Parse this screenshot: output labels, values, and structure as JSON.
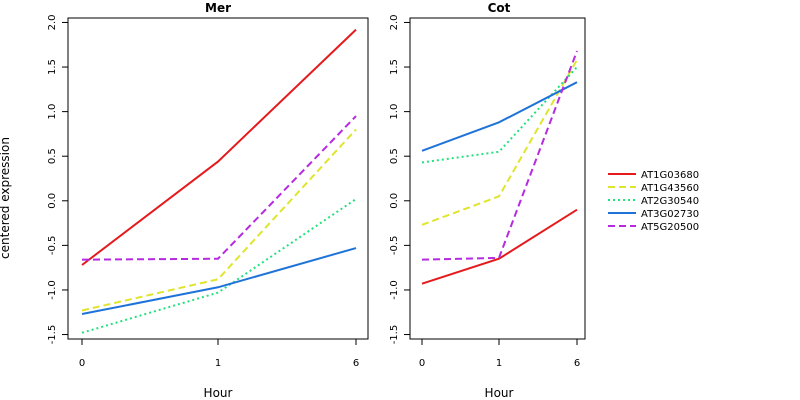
{
  "chart_data": [
    {
      "type": "line",
      "title": "Mer",
      "xlabel": "Hour",
      "ylabel": "centered expression",
      "categories": [
        "0",
        "1",
        "6"
      ],
      "yticks": [
        "-1.5",
        "-1.0",
        "-0.5",
        "0.0",
        "0.5",
        "1.0",
        "1.5",
        "2.0"
      ],
      "ylim": [
        -1.55,
        2.05
      ],
      "series": [
        {
          "name": "AT1G03680",
          "values": [
            -0.72,
            0.44,
            1.92
          ]
        },
        {
          "name": "AT1G43560",
          "values": [
            -1.23,
            -0.88,
            0.8
          ]
        },
        {
          "name": "AT2G30540",
          "values": [
            -1.48,
            -1.03,
            0.02
          ]
        },
        {
          "name": "AT3G02730",
          "values": [
            -1.27,
            -0.97,
            -0.53
          ]
        },
        {
          "name": "AT5G20500",
          "values": [
            -0.66,
            -0.65,
            0.95
          ]
        }
      ]
    },
    {
      "type": "line",
      "title": "Cot",
      "xlabel": "Hour",
      "ylabel": "",
      "categories": [
        "0",
        "1",
        "6"
      ],
      "yticks": [
        "-1.5",
        "-1.0",
        "-0.5",
        "0.0",
        "0.5",
        "1.0",
        "1.5",
        "2.0"
      ],
      "ylim": [
        -1.55,
        2.05
      ],
      "series": [
        {
          "name": "AT1G03680",
          "values": [
            -0.93,
            -0.65,
            -0.1
          ]
        },
        {
          "name": "AT1G43560",
          "values": [
            -0.27,
            0.05,
            1.58
          ]
        },
        {
          "name": "AT2G30540",
          "values": [
            0.43,
            0.55,
            1.5
          ]
        },
        {
          "name": "AT3G02730",
          "values": [
            0.56,
            0.88,
            1.33
          ]
        },
        {
          "name": "AT5G20500",
          "values": [
            -0.66,
            -0.64,
            1.68
          ]
        }
      ]
    }
  ],
  "legend": {
    "position": "right",
    "items": [
      {
        "label": "AT1G03680",
        "color": "#e41a1c",
        "dash": "solid"
      },
      {
        "label": "AT1G43560",
        "color": "#dfe52d",
        "dash": "dashed"
      },
      {
        "label": "AT2G30540",
        "color": "#22e07e",
        "dash": "dotted"
      },
      {
        "label": "AT3G02730",
        "color": "#1f73d8",
        "dash": "solid"
      },
      {
        "label": "AT5G20500",
        "color": "#b62ae0",
        "dash": "dashed"
      }
    ]
  }
}
